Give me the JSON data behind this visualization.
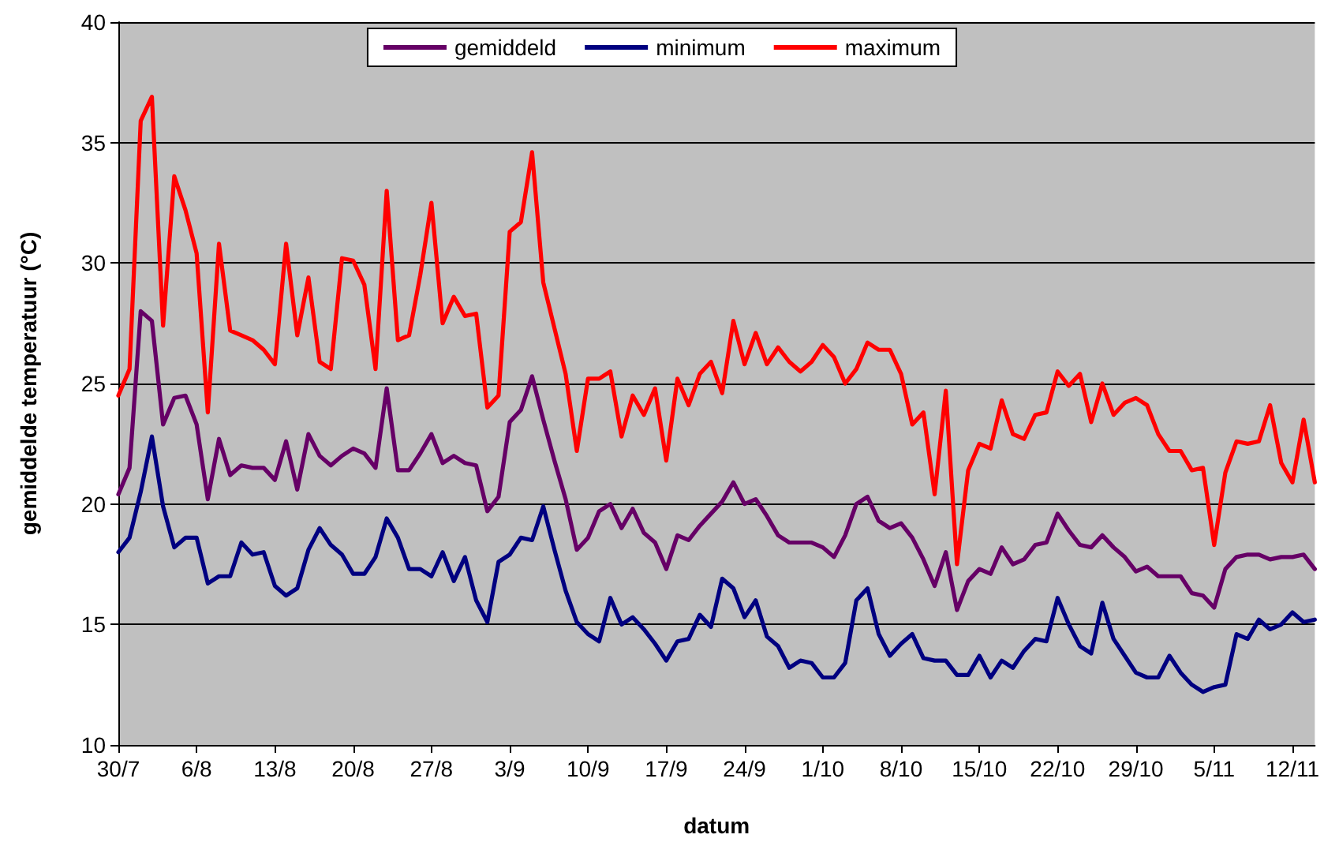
{
  "chart_data": {
    "type": "line",
    "xlabel": "datum",
    "ylabel": "gemiddelde temperatuur (°C)",
    "x": [
      "--07-30",
      "--07-31",
      "--08-01",
      "--08-02",
      "--08-03",
      "--08-04",
      "--08-05",
      "--08-06",
      "--08-07",
      "--08-08",
      "--08-09",
      "--08-10",
      "--08-11",
      "--08-12",
      "--08-13",
      "--08-14",
      "--08-15",
      "--08-16",
      "--08-17",
      "--08-18",
      "--08-19",
      "--08-20",
      "--08-21",
      "--08-22",
      "--08-23",
      "--08-24",
      "--08-25",
      "--08-26",
      "--08-27",
      "--08-28",
      "--08-29",
      "--08-30",
      "--08-31",
      "--09-01",
      "--09-02",
      "--09-03",
      "--09-04",
      "--09-05",
      "--09-06",
      "--09-07",
      "--09-08",
      "--09-09",
      "--09-10",
      "--09-11",
      "--09-12",
      "--09-13",
      "--09-14",
      "--09-15",
      "--09-16",
      "--09-17",
      "--09-18",
      "--09-19",
      "--09-20",
      "--09-21",
      "--09-22",
      "--09-23",
      "--09-24",
      "--09-25",
      "--09-26",
      "--09-27",
      "--09-28",
      "--09-29",
      "--09-30",
      "--10-01",
      "--10-02",
      "--10-03",
      "--10-04",
      "--10-05",
      "--10-06",
      "--10-07",
      "--10-08",
      "--10-09",
      "--10-10",
      "--10-11",
      "--10-12",
      "--10-13",
      "--10-14",
      "--10-15",
      "--10-16",
      "--10-17",
      "--10-18",
      "--10-19",
      "--10-20",
      "--10-21",
      "--10-22",
      "--10-23",
      "--10-24",
      "--10-25",
      "--10-26",
      "--10-27",
      "--10-28",
      "--10-29",
      "--10-30",
      "--10-31",
      "--11-01",
      "--11-02",
      "--11-03",
      "--11-04",
      "--11-05",
      "--11-06",
      "--11-07",
      "--11-08",
      "--11-09",
      "--11-10",
      "--11-11",
      "--11-12",
      "--11-13",
      "--11-14"
    ],
    "series": [
      {
        "name": "gemiddeld",
        "color": "#660066",
        "values": [
          20.4,
          21.5,
          28.0,
          27.6,
          23.3,
          24.4,
          24.5,
          23.3,
          20.2,
          22.7,
          21.2,
          21.6,
          21.5,
          21.5,
          21.0,
          22.6,
          20.6,
          22.9,
          22.0,
          21.6,
          22.0,
          22.3,
          22.1,
          21.5,
          24.8,
          21.4,
          21.4,
          22.1,
          22.9,
          21.7,
          22.0,
          21.7,
          21.6,
          19.7,
          20.3,
          23.4,
          23.9,
          25.3,
          23.5,
          21.8,
          20.2,
          18.1,
          18.6,
          19.7,
          20.0,
          19.0,
          19.8,
          18.8,
          18.4,
          17.3,
          18.7,
          18.5,
          19.1,
          19.6,
          20.1,
          20.9,
          20.0,
          20.2,
          19.5,
          18.7,
          18.4,
          18.4,
          18.4,
          18.2,
          17.8,
          18.7,
          20.0,
          20.3,
          19.3,
          19.0,
          19.2,
          18.6,
          17.7,
          16.6,
          18.0,
          15.6,
          16.8,
          17.3,
          17.1,
          18.2,
          17.5,
          17.7,
          18.3,
          18.4,
          19.6,
          18.9,
          18.3,
          18.2,
          18.7,
          18.2,
          17.8,
          17.2,
          17.4,
          17.0,
          17.0,
          17.0,
          16.3,
          16.2,
          15.7,
          17.3,
          17.8,
          17.9,
          17.9,
          17.7,
          17.8,
          17.8,
          17.9,
          17.3
        ]
      },
      {
        "name": "minimum",
        "color": "#000080",
        "values": [
          18.0,
          18.6,
          20.5,
          22.8,
          19.9,
          18.2,
          18.6,
          18.6,
          16.7,
          17.0,
          17.0,
          18.4,
          17.9,
          18.0,
          16.6,
          16.2,
          16.5,
          18.1,
          19.0,
          18.3,
          17.9,
          17.1,
          17.1,
          17.8,
          19.4,
          18.6,
          17.3,
          17.3,
          17.0,
          18.0,
          16.8,
          17.8,
          16.0,
          15.1,
          17.6,
          17.9,
          18.6,
          18.5,
          19.9,
          18.1,
          16.4,
          15.1,
          14.6,
          14.3,
          16.1,
          15.0,
          15.3,
          14.8,
          14.2,
          13.5,
          14.3,
          14.4,
          15.4,
          14.9,
          16.9,
          16.5,
          15.3,
          16.0,
          14.5,
          14.1,
          13.2,
          13.5,
          13.4,
          12.8,
          12.8,
          13.4,
          16.0,
          16.5,
          14.6,
          13.7,
          14.2,
          14.6,
          13.6,
          13.5,
          13.5,
          12.9,
          12.9,
          13.7,
          12.8,
          13.5,
          13.2,
          13.9,
          14.4,
          14.3,
          16.1,
          15.0,
          14.1,
          13.8,
          15.9,
          14.4,
          13.7,
          13.0,
          12.8,
          12.8,
          13.7,
          13.0,
          12.5,
          12.2,
          12.4,
          12.5,
          14.6,
          14.4,
          15.2,
          14.8,
          15.0,
          15.5,
          15.1,
          15.2
        ]
      },
      {
        "name": "maximum",
        "color": "#ff0000",
        "values": [
          24.5,
          25.6,
          35.9,
          36.9,
          27.4,
          33.6,
          32.2,
          30.4,
          23.8,
          30.8,
          27.2,
          27.0,
          26.8,
          26.4,
          25.8,
          30.8,
          27.0,
          29.4,
          25.9,
          25.6,
          30.2,
          30.1,
          29.1,
          25.6,
          33.0,
          26.8,
          27.0,
          29.5,
          32.5,
          27.5,
          28.6,
          27.8,
          27.9,
          24.0,
          24.5,
          31.3,
          31.7,
          34.6,
          29.2,
          27.3,
          25.4,
          22.2,
          25.2,
          25.2,
          25.5,
          22.8,
          24.5,
          23.7,
          24.8,
          21.8,
          25.2,
          24.1,
          25.4,
          25.9,
          24.6,
          27.6,
          25.8,
          27.1,
          25.8,
          26.5,
          25.9,
          25.5,
          25.9,
          26.6,
          26.1,
          25.0,
          25.6,
          26.7,
          26.4,
          26.4,
          25.4,
          23.3,
          23.8,
          20.4,
          24.7,
          17.5,
          21.4,
          22.5,
          22.3,
          24.3,
          22.9,
          22.7,
          23.7,
          23.8,
          25.5,
          24.9,
          25.4,
          23.4,
          25.0,
          23.7,
          24.2,
          24.4,
          24.1,
          22.9,
          22.2,
          22.2,
          21.4,
          21.5,
          18.3,
          21.3,
          22.6,
          22.5,
          22.6,
          24.1,
          21.7,
          20.9,
          23.5,
          20.9
        ]
      }
    ],
    "xlim": [
      "--07-30",
      "--11-14"
    ],
    "xticks": [
      {
        "value": "--07-30",
        "label": "30/7"
      },
      {
        "value": "--08-06",
        "label": "6/8"
      },
      {
        "value": "--08-13",
        "label": "13/8"
      },
      {
        "value": "--08-20",
        "label": "20/8"
      },
      {
        "value": "--08-27",
        "label": "27/8"
      },
      {
        "value": "--09-03",
        "label": "3/9"
      },
      {
        "value": "--09-10",
        "label": "10/9"
      },
      {
        "value": "--09-17",
        "label": "17/9"
      },
      {
        "value": "--09-24",
        "label": "24/9"
      },
      {
        "value": "--10-01",
        "label": "1/10"
      },
      {
        "value": "--10-08",
        "label": "8/10"
      },
      {
        "value": "--10-15",
        "label": "15/10"
      },
      {
        "value": "--10-22",
        "label": "22/10"
      },
      {
        "value": "--10-29",
        "label": "29/10"
      },
      {
        "value": "--11-05",
        "label": "5/11"
      },
      {
        "value": "--11-12",
        "label": "12/11"
      }
    ],
    "ylim": [
      10,
      40
    ],
    "yticks": [
      10,
      15,
      20,
      25,
      30,
      35,
      40
    ],
    "grid": "y",
    "legend": "top",
    "marker": "none",
    "line_style": "solid"
  }
}
